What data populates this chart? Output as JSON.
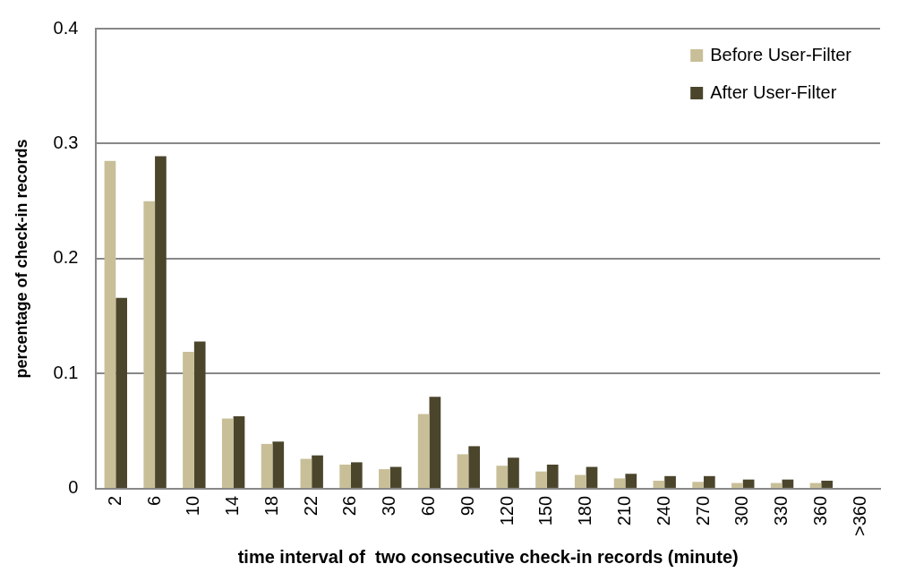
{
  "chart_data": {
    "type": "bar",
    "xlabel": "time interval of  two consecutive check-in records (minute)",
    "ylabel": "percentage of check-in records",
    "categories": [
      "2",
      "6",
      "10",
      "14",
      "18",
      "22",
      "26",
      "30",
      "60",
      "90",
      "120",
      "150",
      "180",
      "210",
      "240",
      "270",
      "300",
      "330",
      "360",
      ">360"
    ],
    "series": [
      {
        "name": "Before User-Filter",
        "color": "#c8bf98",
        "values": [
          0.285,
          0.25,
          0.119,
          0.061,
          0.039,
          0.026,
          0.021,
          0.017,
          0.065,
          0.03,
          0.02,
          0.015,
          0.012,
          0.009,
          0.007,
          0.006,
          0.005,
          0.005,
          0.005,
          0
        ]
      },
      {
        "name": "After User-Filter",
        "color": "#4b452c",
        "values": [
          0.166,
          0.289,
          0.128,
          0.063,
          0.041,
          0.029,
          0.023,
          0.019,
          0.08,
          0.037,
          0.027,
          0.021,
          0.019,
          0.013,
          0.011,
          0.011,
          0.008,
          0.008,
          0.007,
          0
        ]
      }
    ],
    "ylim": [
      0,
      0.4
    ],
    "yticks": [
      0,
      0.1,
      0.2,
      0.3,
      0.4
    ],
    "grid": "y",
    "legend": "top right"
  }
}
